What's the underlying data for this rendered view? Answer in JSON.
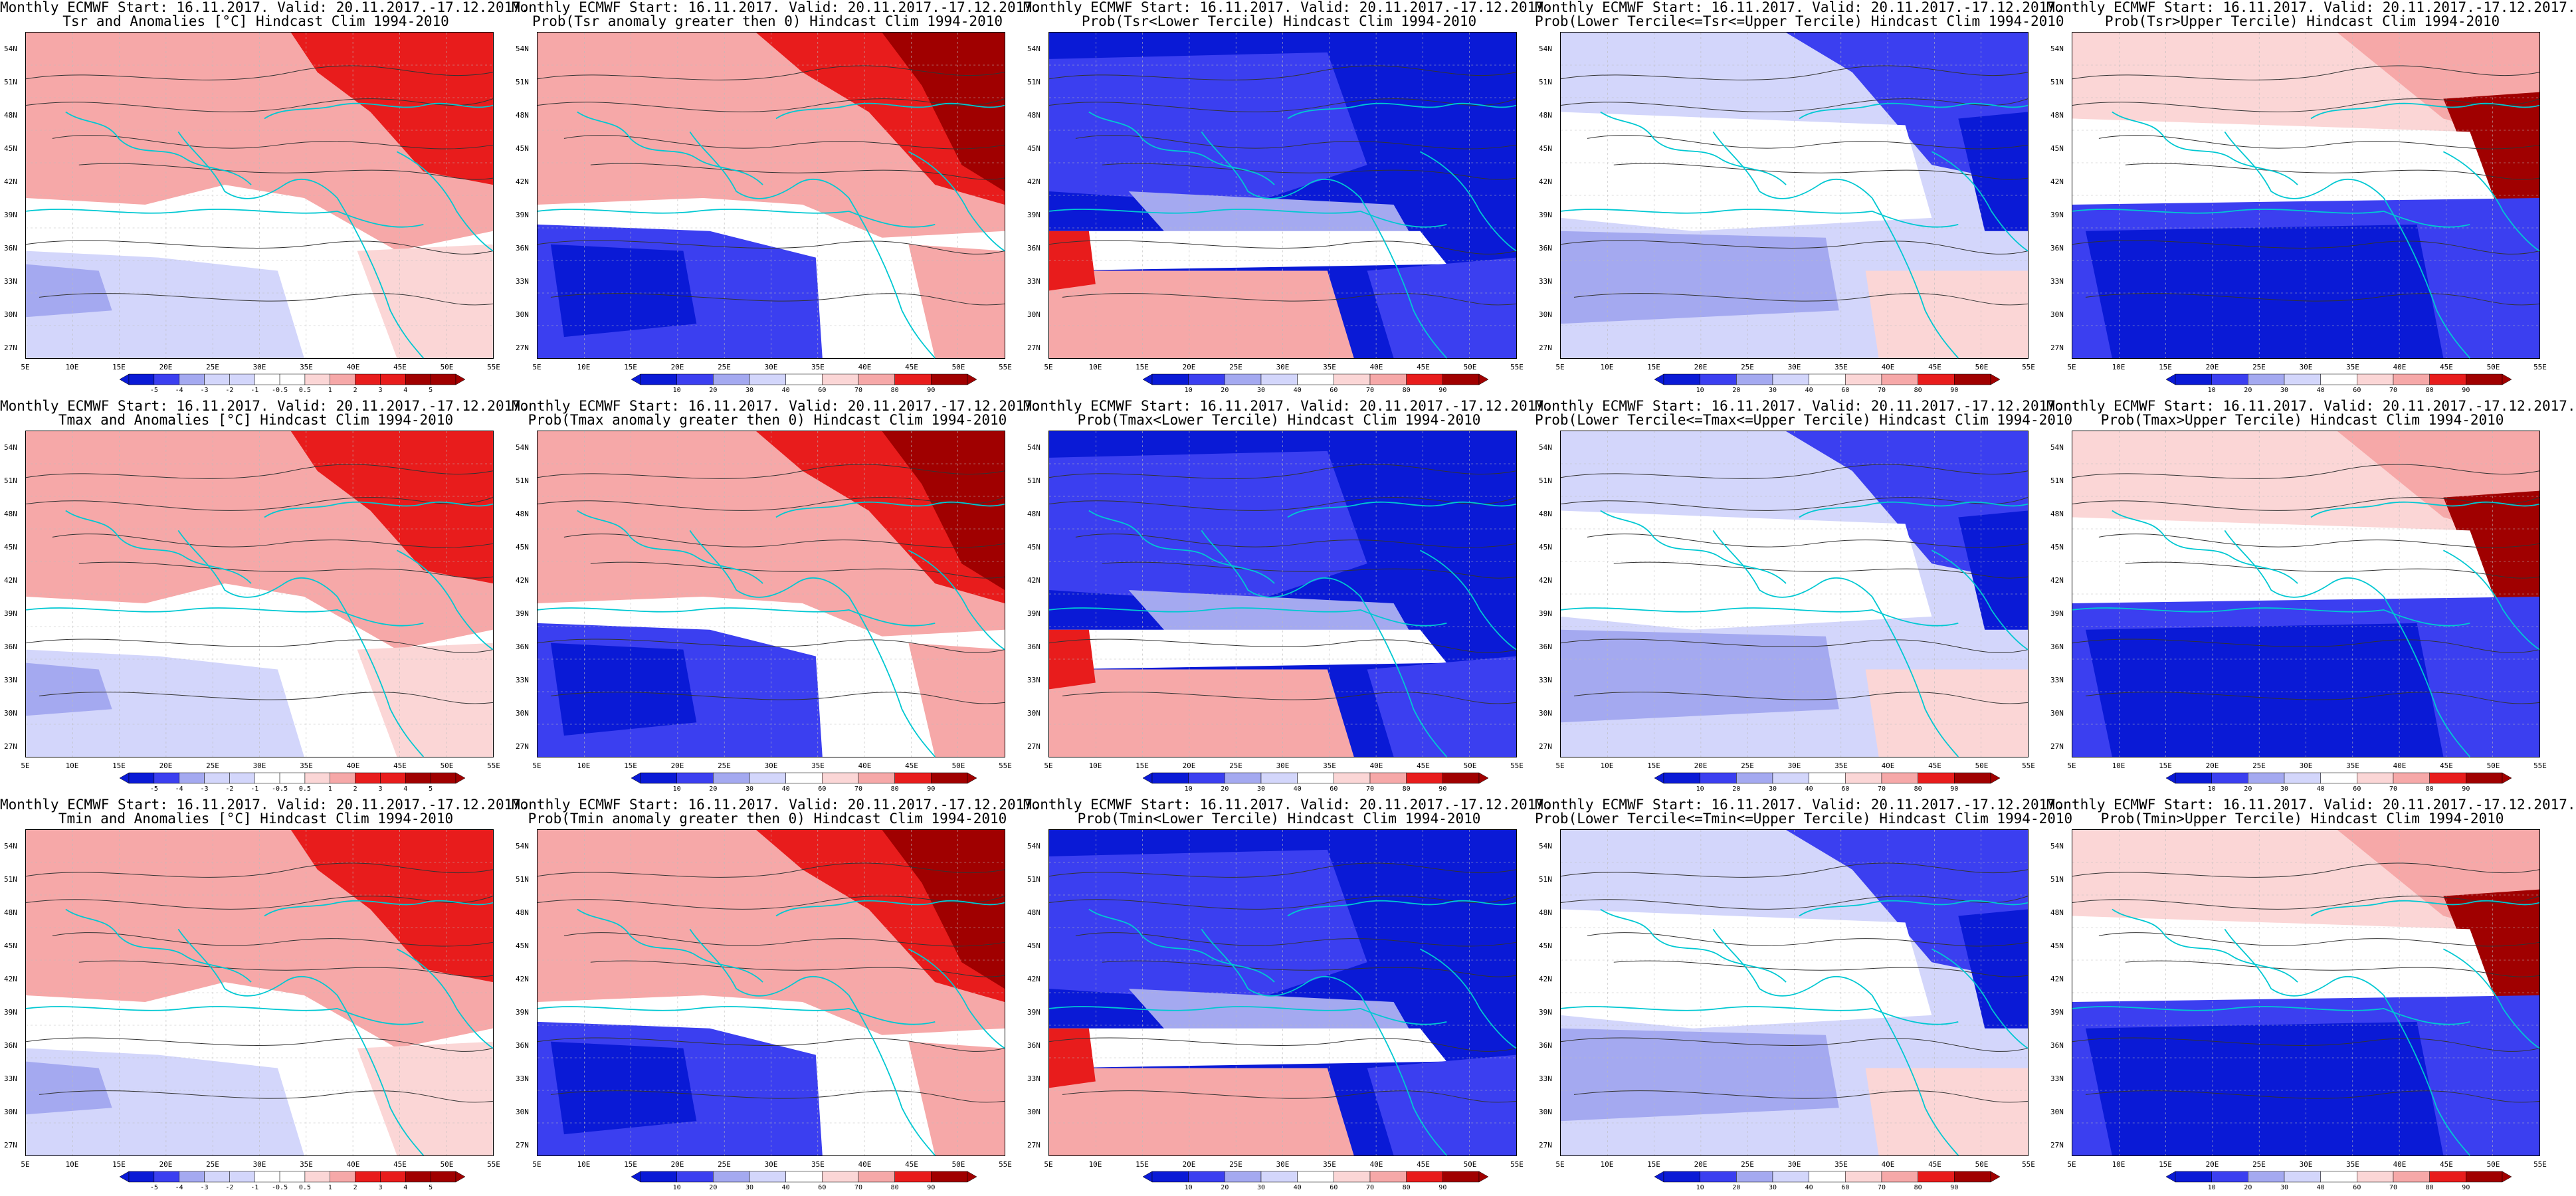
{
  "header_line": "Monthly ECMWF Start: 16.11.2017. Valid: 20.11.2017.-17.12.2017.",
  "lat_labels": [
    "54N",
    "51N",
    "48N",
    "45N",
    "42N",
    "39N",
    "36N",
    "33N",
    "30N",
    "27N"
  ],
  "lon_labels": [
    "5E",
    "10E",
    "15E",
    "20E",
    "25E",
    "30E",
    "35E",
    "40E",
    "45E",
    "50E",
    "55E"
  ],
  "anomaly_scale": [
    "-5",
    "-4",
    "-3",
    "-2",
    "-1",
    "-0.5",
    "0.5",
    "1",
    "2",
    "3",
    "4",
    "5"
  ],
  "prob_scale": [
    "10",
    "20",
    "30",
    "40",
    "60",
    "70",
    "80",
    "90"
  ],
  "colors": {
    "deep_red": "#a00000",
    "red": "#e81c1c",
    "light_red": "#f6a8a8",
    "pale_red": "#fbd6d6",
    "white": "#ffffff",
    "pale_blue": "#d3d6fb",
    "light_blue": "#a4a9f0",
    "blue": "#3b3ff0",
    "deep_blue": "#0a1ad6",
    "contour": "#333333",
    "coast": "#00c8d2"
  },
  "panels": [
    {
      "key": "r0c0",
      "title": "Tsr and Anomalies [°C] Hindcast Clim 1994-2010",
      "scale": "anomaly",
      "colorbar": true,
      "pattern": "anom"
    },
    {
      "key": "r0c1",
      "title": "Prob(Tsr anomaly greater then 0) Hindcast Clim 1994-2010",
      "scale": "prob",
      "colorbar": true,
      "pattern": "pos"
    },
    {
      "key": "r0c2",
      "title": "Prob(Tsr<Lower Tercile) Hindcast Clim 1994-2010",
      "scale": "prob",
      "colorbar": true,
      "pattern": "lower"
    },
    {
      "key": "r0c3",
      "title": "Prob(Lower Tercile<=Tsr<=Upper Tercile) Hindcast Clim 1994-2010",
      "scale": "prob",
      "colorbar": true,
      "pattern": "middle"
    },
    {
      "key": "r0c4",
      "title": "Prob(Tsr>Upper Tercile) Hindcast Clim 1994-2010",
      "scale": "prob",
      "colorbar": true,
      "pattern": "upper"
    },
    {
      "key": "r1c0",
      "title": "Tmax and Anomalies [°C] Hindcast Clim 1994-2010",
      "scale": "anomaly",
      "colorbar": true,
      "pattern": "anom"
    },
    {
      "key": "r1c1",
      "title": "Prob(Tmax anomaly greater then 0) Hindcast Clim 1994-2010",
      "scale": "prob",
      "colorbar": true,
      "pattern": "pos"
    },
    {
      "key": "r1c2",
      "title": "Prob(Tmax<Lower Tercile) Hindcast Clim 1994-2010",
      "scale": "prob",
      "colorbar": true,
      "pattern": "lower"
    },
    {
      "key": "r1c3",
      "title": "Prob(Lower Tercile<=Tmax<=Upper Tercile) Hindcast Clim 1994-2010",
      "scale": "prob",
      "colorbar": true,
      "pattern": "middle"
    },
    {
      "key": "r1c4",
      "title": "Prob(Tmax>Upper Tercile) Hindcast Clim 1994-2010",
      "scale": "prob",
      "colorbar": true,
      "pattern": "upper"
    },
    {
      "key": "r2c0",
      "title": "Tmin and Anomalies [°C] Hindcast Clim 1994-2010",
      "scale": "anomaly",
      "colorbar": true,
      "pattern": "anom"
    },
    {
      "key": "r2c1",
      "title": "Prob(Tmin anomaly greater then 0) Hindcast Clim 1994-2010",
      "scale": "prob",
      "colorbar": true,
      "pattern": "pos"
    },
    {
      "key": "r2c2",
      "title": "Prob(Tmin<Lower Tercile) Hindcast Clim 1994-2010",
      "scale": "prob",
      "colorbar": true,
      "pattern": "lower"
    },
    {
      "key": "r2c3",
      "title": "Prob(Lower Tercile<=Tmin<=Upper Tercile) Hindcast Clim 1994-2010",
      "scale": "prob",
      "colorbar": true,
      "pattern": "middle"
    },
    {
      "key": "r2c4",
      "title": "Prob(Tmin>Upper Tercile) Hindcast Clim 1994-2010",
      "scale": "prob",
      "colorbar": true,
      "pattern": "upper"
    }
  ]
}
